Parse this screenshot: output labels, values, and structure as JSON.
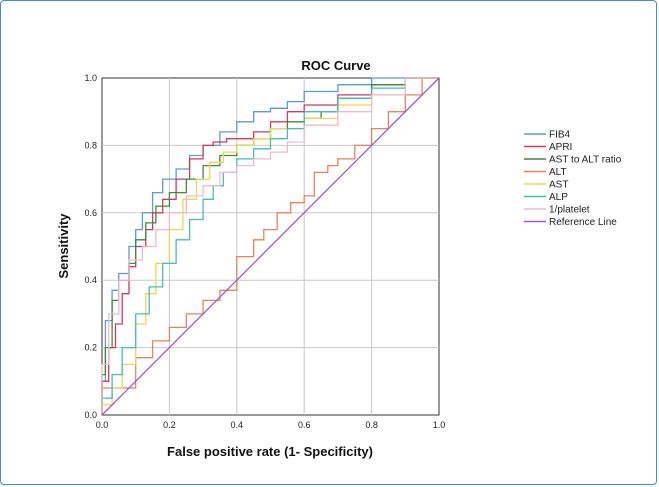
{
  "chart_data": {
    "type": "line",
    "title": "ROC Curve",
    "xlabel": "False positive rate (1- Specificity)",
    "ylabel": "Sensitivity",
    "xlim": [
      0,
      1
    ],
    "ylim": [
      0,
      1
    ],
    "xticks": [
      "0.0",
      "0.2",
      "0.4",
      "0.6",
      "0.8",
      "1.0"
    ],
    "yticks": [
      "0.0",
      "0.2",
      "0.4",
      "0.6",
      "0.8",
      "1.0"
    ],
    "grid": true,
    "legend_position": "right",
    "series": [
      {
        "name": "FIB4",
        "color": "#5b9bd5",
        "points": [
          [
            0,
            0
          ],
          [
            0.01,
            0.1
          ],
          [
            0.03,
            0.28
          ],
          [
            0.05,
            0.37
          ],
          [
            0.08,
            0.42
          ],
          [
            0.1,
            0.5
          ],
          [
            0.12,
            0.55
          ],
          [
            0.15,
            0.6
          ],
          [
            0.18,
            0.66
          ],
          [
            0.22,
            0.7
          ],
          [
            0.26,
            0.73
          ],
          [
            0.3,
            0.77
          ],
          [
            0.35,
            0.8
          ],
          [
            0.4,
            0.84
          ],
          [
            0.45,
            0.87
          ],
          [
            0.5,
            0.9
          ],
          [
            0.55,
            0.91
          ],
          [
            0.6,
            0.93
          ],
          [
            0.7,
            0.96
          ],
          [
            0.8,
            0.98
          ],
          [
            0.9,
            1.0
          ],
          [
            1,
            1
          ]
        ]
      },
      {
        "name": "APRI",
        "color": "#d6395b",
        "points": [
          [
            0,
            0
          ],
          [
            0.02,
            0.1
          ],
          [
            0.04,
            0.2
          ],
          [
            0.06,
            0.27
          ],
          [
            0.08,
            0.36
          ],
          [
            0.1,
            0.44
          ],
          [
            0.13,
            0.5
          ],
          [
            0.15,
            0.55
          ],
          [
            0.18,
            0.6
          ],
          [
            0.22,
            0.64
          ],
          [
            0.26,
            0.7
          ],
          [
            0.3,
            0.76
          ],
          [
            0.33,
            0.8
          ],
          [
            0.37,
            0.81
          ],
          [
            0.45,
            0.82
          ],
          [
            0.5,
            0.84
          ],
          [
            0.55,
            0.87
          ],
          [
            0.6,
            0.9
          ],
          [
            0.7,
            0.92
          ],
          [
            0.8,
            0.95
          ],
          [
            0.9,
            0.98
          ],
          [
            1,
            1
          ]
        ]
      },
      {
        "name": "AST to ALT ratio",
        "color": "#3c8c3c",
        "points": [
          [
            0,
            0
          ],
          [
            0.01,
            0.12
          ],
          [
            0.03,
            0.2
          ],
          [
            0.05,
            0.34
          ],
          [
            0.08,
            0.4
          ],
          [
            0.1,
            0.45
          ],
          [
            0.13,
            0.52
          ],
          [
            0.16,
            0.57
          ],
          [
            0.2,
            0.62
          ],
          [
            0.25,
            0.66
          ],
          [
            0.3,
            0.7
          ],
          [
            0.35,
            0.74
          ],
          [
            0.4,
            0.77
          ],
          [
            0.45,
            0.8
          ],
          [
            0.5,
            0.82
          ],
          [
            0.55,
            0.85
          ],
          [
            0.6,
            0.87
          ],
          [
            0.65,
            0.88
          ],
          [
            0.7,
            0.9
          ],
          [
            0.8,
            0.94
          ],
          [
            0.9,
            0.98
          ],
          [
            1,
            1
          ]
        ]
      },
      {
        "name": "ALT",
        "color": "#e8825a",
        "points": [
          [
            0,
            0
          ],
          [
            0.1,
            0.08
          ],
          [
            0.15,
            0.17
          ],
          [
            0.2,
            0.22
          ],
          [
            0.25,
            0.26
          ],
          [
            0.3,
            0.3
          ],
          [
            0.35,
            0.34
          ],
          [
            0.4,
            0.37
          ],
          [
            0.45,
            0.47
          ],
          [
            0.48,
            0.52
          ],
          [
            0.52,
            0.55
          ],
          [
            0.56,
            0.6
          ],
          [
            0.6,
            0.63
          ],
          [
            0.63,
            0.65
          ],
          [
            0.67,
            0.72
          ],
          [
            0.7,
            0.74
          ],
          [
            0.75,
            0.76
          ],
          [
            0.8,
            0.8
          ],
          [
            0.85,
            0.85
          ],
          [
            0.9,
            0.9
          ],
          [
            0.95,
            0.95
          ],
          [
            1,
            1
          ]
        ]
      },
      {
        "name": "AST",
        "color": "#ecd84a",
        "points": [
          [
            0,
            0
          ],
          [
            0.03,
            0.03
          ],
          [
            0.06,
            0.08
          ],
          [
            0.1,
            0.15
          ],
          [
            0.13,
            0.27
          ],
          [
            0.16,
            0.36
          ],
          [
            0.2,
            0.45
          ],
          [
            0.24,
            0.55
          ],
          [
            0.28,
            0.64
          ],
          [
            0.32,
            0.7
          ],
          [
            0.36,
            0.75
          ],
          [
            0.4,
            0.78
          ],
          [
            0.45,
            0.8
          ],
          [
            0.5,
            0.82
          ],
          [
            0.6,
            0.85
          ],
          [
            0.7,
            0.88
          ],
          [
            0.8,
            0.92
          ],
          [
            0.9,
            0.95
          ],
          [
            1,
            1
          ]
        ]
      },
      {
        "name": "ALP",
        "color": "#3fc1b4",
        "points": [
          [
            0,
            0
          ],
          [
            0.03,
            0.05
          ],
          [
            0.06,
            0.12
          ],
          [
            0.1,
            0.2
          ],
          [
            0.14,
            0.3
          ],
          [
            0.18,
            0.38
          ],
          [
            0.22,
            0.45
          ],
          [
            0.26,
            0.52
          ],
          [
            0.3,
            0.58
          ],
          [
            0.33,
            0.64
          ],
          [
            0.36,
            0.68
          ],
          [
            0.4,
            0.72
          ],
          [
            0.45,
            0.76
          ],
          [
            0.5,
            0.79
          ],
          [
            0.55,
            0.82
          ],
          [
            0.6,
            0.85
          ],
          [
            0.7,
            0.9
          ],
          [
            0.8,
            0.94
          ],
          [
            0.9,
            0.97
          ],
          [
            1,
            1
          ]
        ]
      },
      {
        "name": "1/platelet",
        "color": "#f2b6d0",
        "points": [
          [
            0,
            0
          ],
          [
            0.02,
            0.15
          ],
          [
            0.05,
            0.3
          ],
          [
            0.08,
            0.4
          ],
          [
            0.12,
            0.46
          ],
          [
            0.16,
            0.5
          ],
          [
            0.2,
            0.55
          ],
          [
            0.25,
            0.6
          ],
          [
            0.3,
            0.65
          ],
          [
            0.35,
            0.68
          ],
          [
            0.4,
            0.72
          ],
          [
            0.45,
            0.74
          ],
          [
            0.5,
            0.76
          ],
          [
            0.55,
            0.78
          ],
          [
            0.6,
            0.81
          ],
          [
            0.7,
            0.86
          ],
          [
            0.8,
            0.9
          ],
          [
            0.9,
            0.95
          ],
          [
            1,
            1
          ]
        ]
      },
      {
        "name": "Reference Line",
        "color": "#9a58e0",
        "points": [
          [
            0,
            0
          ],
          [
            1,
            1
          ]
        ]
      }
    ]
  }
}
